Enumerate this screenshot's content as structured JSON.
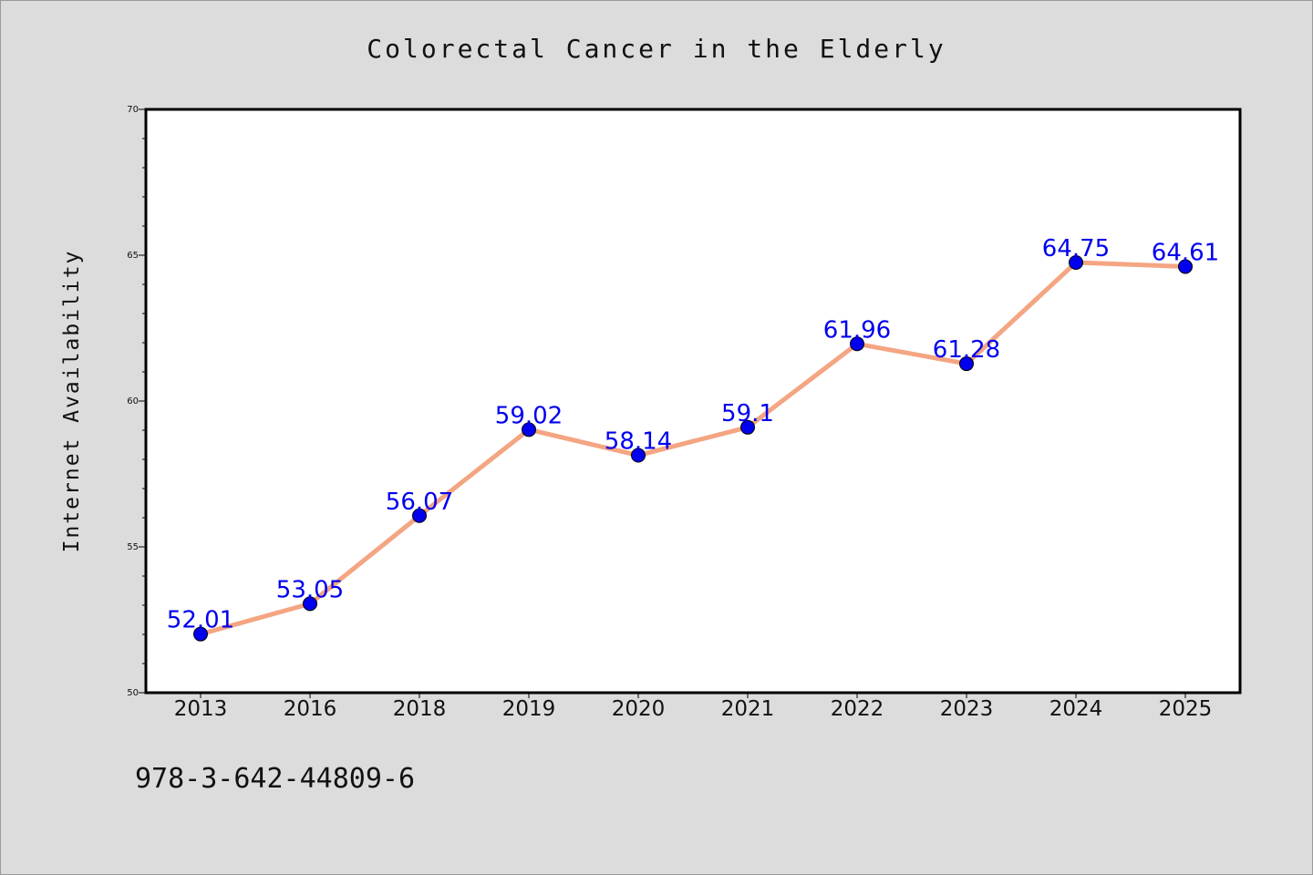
{
  "chart_data": {
    "type": "line",
    "title": "Colorectal Cancer in the Elderly",
    "xlabel": "",
    "ylabel": "Internet Availability",
    "categories": [
      "2013",
      "2016",
      "2018",
      "2019",
      "2020",
      "2021",
      "2022",
      "2023",
      "2024",
      "2025"
    ],
    "series": [
      {
        "values": [
          52.01,
          53.05,
          56.07,
          59.02,
          58.14,
          59.1,
          61.96,
          61.28,
          64.75,
          64.61
        ],
        "labels": [
          "52.01",
          "53.05",
          "56.07",
          "59.02",
          "58.14",
          "59.1",
          "61.96",
          "61.28",
          "64.75",
          "64.61"
        ],
        "line_color": "#f4a582",
        "marker_color": "#0000ee"
      }
    ],
    "ylim": [
      50,
      70
    ],
    "yticks": [
      "50",
      "55",
      "60",
      "65",
      "70"
    ],
    "grid": false,
    "legend": "none",
    "background": "#dcdcdc",
    "plot_background": "#ffffff"
  },
  "footer": {
    "isbn": "978-3-642-44809-6"
  }
}
